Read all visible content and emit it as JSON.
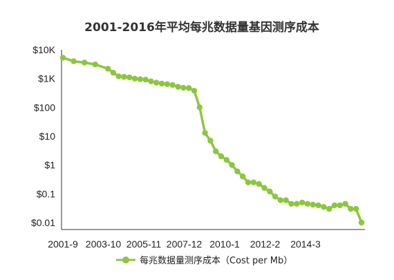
{
  "chart_data": {
    "type": "line",
    "title": "2001-2016年平均每兆数据量基因测序成本",
    "xlabel": "",
    "ylabel": "",
    "y_scale": "log",
    "ylim": [
      0.01,
      10000
    ],
    "y_ticks": [
      {
        "value": 10000,
        "label": "$10K"
      },
      {
        "value": 1000,
        "label": "$1K"
      },
      {
        "value": 100,
        "label": "$100"
      },
      {
        "value": 10,
        "label": "$10"
      },
      {
        "value": 1,
        "label": "$1"
      },
      {
        "value": 0.1,
        "label": "$0.1"
      },
      {
        "value": 0.01,
        "label": "$0.01"
      }
    ],
    "x_ticks": [
      "2001-9",
      "2003-10",
      "2005-11",
      "2007-12",
      "2010-1",
      "2012-2",
      "2014-3"
    ],
    "grid": false,
    "legend_position": "bottom",
    "color": "#8cc63f",
    "series": [
      {
        "name": "每兆数据量测序成本（Cost per Mb）",
        "x": [
          "2001-9",
          "2002-3",
          "2002-9",
          "2003-3",
          "2003-10",
          "2004-1",
          "2004-4",
          "2004-7",
          "2004-10",
          "2005-1",
          "2005-4",
          "2005-7",
          "2005-10",
          "2006-1",
          "2006-4",
          "2006-7",
          "2006-10",
          "2007-1",
          "2007-4",
          "2007-7",
          "2007-10",
          "2008-1",
          "2008-4",
          "2008-7",
          "2008-10",
          "2009-1",
          "2009-4",
          "2009-7",
          "2009-10",
          "2010-1",
          "2010-4",
          "2010-7",
          "2010-10",
          "2011-1",
          "2011-4",
          "2011-7",
          "2011-10",
          "2012-1",
          "2012-4",
          "2012-7",
          "2012-10",
          "2013-1",
          "2013-4",
          "2013-7",
          "2013-10",
          "2014-1",
          "2014-4",
          "2014-7",
          "2014-10",
          "2015-1",
          "2015-4",
          "2015-7"
        ],
        "values": [
          5300,
          4000,
          3600,
          3100,
          2200,
          1600,
          1200,
          1150,
          1100,
          1000,
          950,
          920,
          800,
          720,
          670,
          640,
          600,
          520,
          480,
          470,
          380,
          100,
          13,
          7,
          3,
          2,
          1.5,
          1,
          0.6,
          0.4,
          0.25,
          0.25,
          0.22,
          0.16,
          0.12,
          0.08,
          0.06,
          0.06,
          0.045,
          0.045,
          0.05,
          0.045,
          0.042,
          0.04,
          0.035,
          0.03,
          0.04,
          0.04,
          0.045,
          0.03,
          0.03,
          0.01
        ]
      }
    ]
  }
}
